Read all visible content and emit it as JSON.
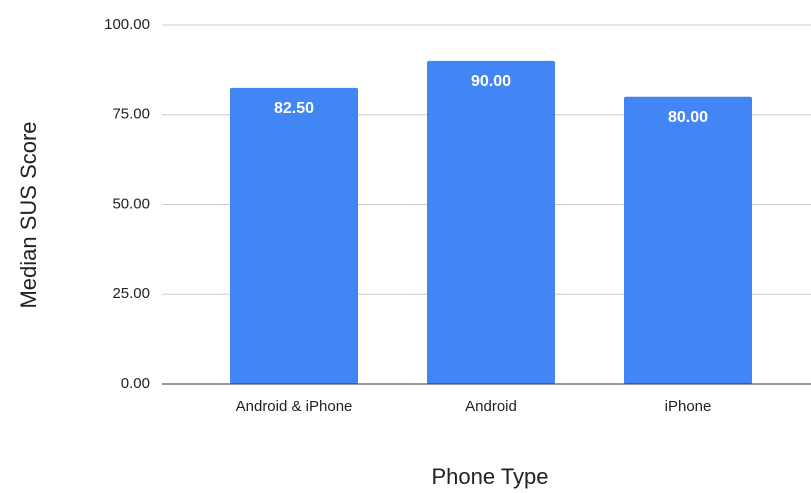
{
  "chart_data": {
    "type": "bar",
    "x_label": "Phone Type",
    "y_label": "Median SUS Score",
    "categories": [
      "Android & iPhone",
      "Android",
      "iPhone"
    ],
    "values": [
      82.5,
      90,
      80
    ],
    "value_labels": [
      "82.50",
      "90.00",
      "80.00"
    ],
    "color": "#4285f4",
    "ylim": [
      0,
      100
    ],
    "yticks": [
      {
        "value": 0,
        "label": "0.00"
      },
      {
        "value": 25,
        "label": "25.00"
      },
      {
        "value": 50,
        "label": "50.00"
      },
      {
        "value": 75,
        "label": "75.00"
      },
      {
        "value": 100,
        "label": "100.00"
      }
    ],
    "grid": true
  }
}
